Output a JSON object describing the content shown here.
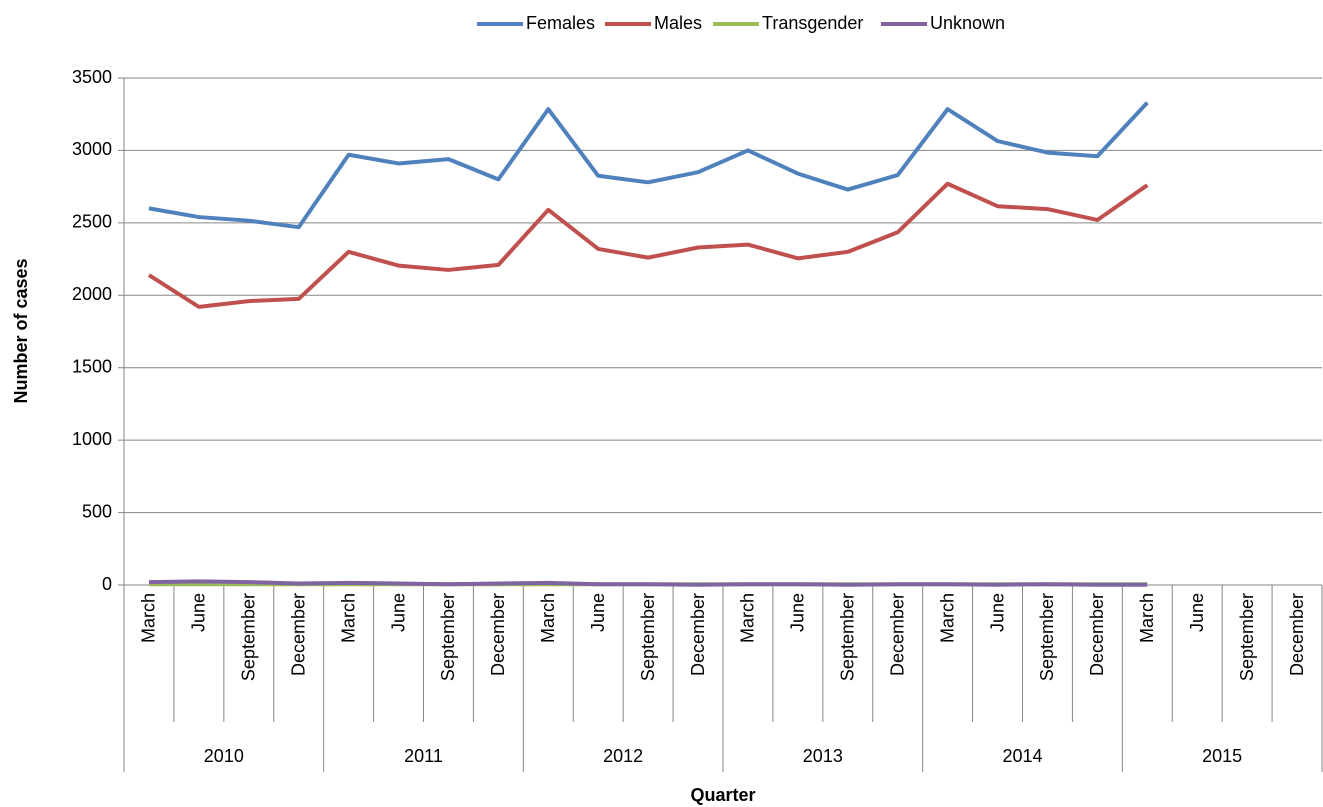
{
  "chart_data": {
    "type": "line",
    "y_label": "Number of cases",
    "x_label": "Quarter",
    "category_groups": [
      "2010",
      "2011",
      "2012",
      "2013",
      "2014",
      "2015"
    ],
    "categories": [
      "March",
      "June",
      "September",
      "December",
      "March",
      "June",
      "September",
      "December",
      "March",
      "June",
      "September",
      "December",
      "March",
      "June",
      "September",
      "December",
      "March",
      "June",
      "September",
      "December",
      "March",
      "June",
      "September",
      "December"
    ],
    "series": [
      {
        "name": "Females",
        "color": "#4f81bd",
        "values": [
          2600,
          2540,
          2515,
          2470,
          2970,
          2910,
          2940,
          2800,
          3285,
          2825,
          2780,
          2850,
          3000,
          2840,
          2730,
          2830,
          3285,
          3065,
          2985,
          2960,
          3330,
          null,
          null,
          null
        ]
      },
      {
        "name": "Males",
        "color": "#c0504d",
        "values": [
          2140,
          1920,
          1960,
          1975,
          2300,
          2205,
          2175,
          2210,
          2590,
          2320,
          2260,
          2330,
          2350,
          2255,
          2300,
          2435,
          2770,
          2615,
          2595,
          2520,
          2760,
          null,
          null,
          null
        ]
      },
      {
        "name": "Transgender",
        "color": "#9bbb59",
        "values": [
          5,
          5,
          5,
          5,
          5,
          5,
          5,
          5,
          5,
          5,
          5,
          5,
          5,
          5,
          5,
          5,
          5,
          5,
          5,
          5,
          5,
          null,
          null,
          null
        ]
      },
      {
        "name": "Unknown",
        "color": "#8064a2",
        "values": [
          20,
          25,
          20,
          10,
          15,
          10,
          5,
          10,
          15,
          5,
          5,
          2,
          5,
          5,
          2,
          5,
          5,
          2,
          5,
          2,
          2,
          null,
          null,
          null
        ]
      }
    ],
    "ylim": [
      0,
      3500
    ],
    "yticks": [
      0,
      500,
      1000,
      1500,
      2000,
      2500,
      3000,
      3500
    ],
    "grid": true,
    "legend": "top"
  }
}
